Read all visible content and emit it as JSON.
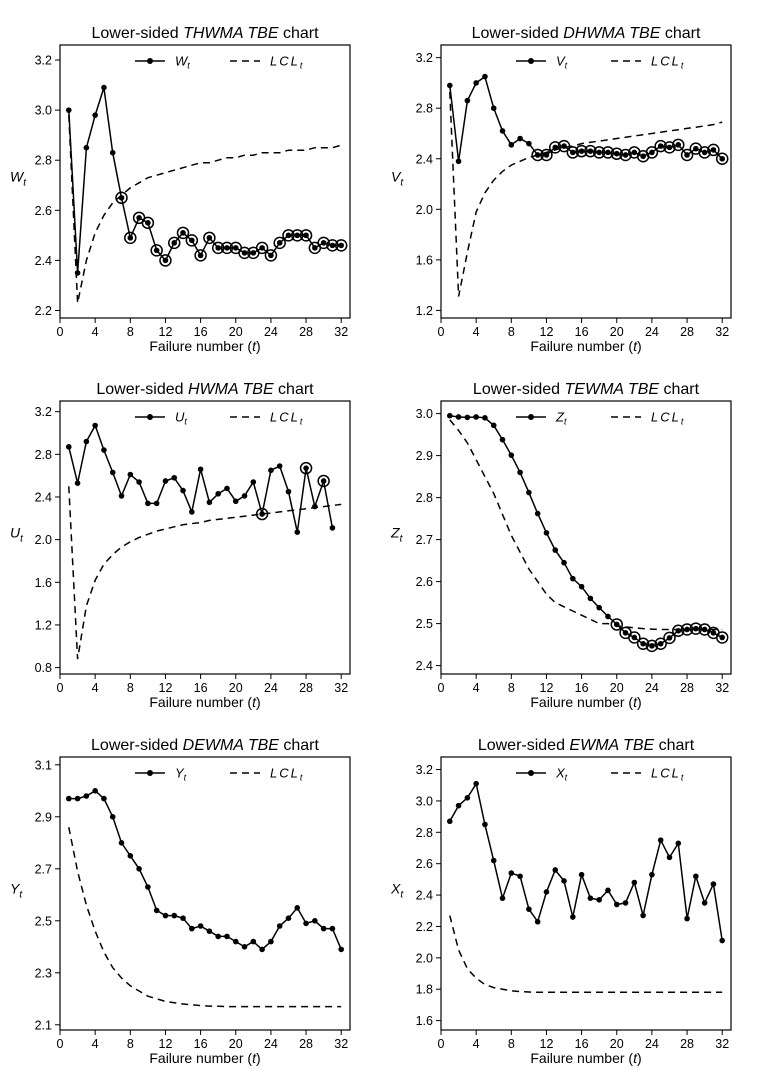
{
  "chart_data": [
    {
      "type": "line",
      "title_parts": [
        "Lower-sided ",
        "THWMA TBE",
        " chart"
      ],
      "xlabel_parts": [
        "Failure number (",
        "t",
        ")"
      ],
      "ylabel": {
        "main": "W",
        "sub": "t"
      },
      "legend": [
        {
          "main": "W",
          "sub": "t",
          "style": "solid-dots"
        },
        {
          "main": "LCL",
          "sub": "t",
          "style": "dashed"
        }
      ],
      "xlim": [
        0,
        33
      ],
      "ylim": [
        2.17,
        3.26
      ],
      "xticks": [
        0,
        4,
        8,
        12,
        16,
        20,
        24,
        28,
        32
      ],
      "yticks": [
        2.2,
        2.4,
        2.6,
        2.8,
        3.0,
        3.2
      ],
      "ytick_labels": [
        "2.2",
        "2.4",
        "2.6",
        "2.8",
        "3.0",
        "3.2"
      ],
      "x": [
        1,
        2,
        3,
        4,
        5,
        6,
        7,
        8,
        9,
        10,
        11,
        12,
        13,
        14,
        15,
        16,
        17,
        18,
        19,
        20,
        21,
        22,
        23,
        24,
        25,
        26,
        27,
        28,
        29,
        30,
        31,
        32
      ],
      "series": {
        "name": "W_t",
        "values": [
          3.0,
          2.35,
          2.85,
          2.98,
          3.09,
          2.83,
          2.65,
          2.49,
          2.57,
          2.55,
          2.44,
          2.4,
          2.47,
          2.51,
          2.48,
          2.42,
          2.49,
          2.45,
          2.45,
          2.45,
          2.43,
          2.43,
          2.45,
          2.42,
          2.47,
          2.5,
          2.5,
          2.5,
          2.45,
          2.47,
          2.46,
          2.46
        ]
      },
      "lcl": {
        "name": "LCL_t",
        "values": [
          2.98,
          2.23,
          2.4,
          2.51,
          2.58,
          2.63,
          2.66,
          2.69,
          2.71,
          2.73,
          2.74,
          2.75,
          2.76,
          2.77,
          2.78,
          2.79,
          2.79,
          2.8,
          2.81,
          2.81,
          2.82,
          2.82,
          2.83,
          2.83,
          2.83,
          2.84,
          2.84,
          2.84,
          2.85,
          2.85,
          2.85,
          2.86
        ]
      },
      "signals": [
        7,
        8,
        9,
        10,
        11,
        12,
        13,
        14,
        15,
        16,
        17,
        18,
        19,
        20,
        21,
        22,
        23,
        24,
        25,
        26,
        27,
        28,
        29,
        30,
        31,
        32
      ]
    },
    {
      "type": "line",
      "title_parts": [
        "Lower-sided ",
        "DHWMA TBE",
        " chart"
      ],
      "xlabel_parts": [
        "Failure number (",
        "t",
        ")"
      ],
      "ylabel": {
        "main": "V",
        "sub": "t"
      },
      "legend": [
        {
          "main": "V",
          "sub": "t",
          "style": "solid-dots"
        },
        {
          "main": "LCL",
          "sub": "t",
          "style": "dashed"
        }
      ],
      "xlim": [
        0,
        33
      ],
      "ylim": [
        1.14,
        3.3
      ],
      "xticks": [
        0,
        4,
        8,
        12,
        16,
        20,
        24,
        28,
        32
      ],
      "yticks": [
        1.2,
        1.6,
        2.0,
        2.4,
        2.8,
        3.2
      ],
      "ytick_labels": [
        "1.2",
        "1.6",
        "2.0",
        "2.4",
        "2.8",
        "3.2"
      ],
      "x": [
        1,
        2,
        3,
        4,
        5,
        6,
        7,
        8,
        9,
        10,
        11,
        12,
        13,
        14,
        15,
        16,
        17,
        18,
        19,
        20,
        21,
        22,
        23,
        24,
        25,
        26,
        27,
        28,
        29,
        30,
        31,
        32
      ],
      "series": {
        "name": "V_t",
        "values": [
          2.98,
          2.38,
          2.86,
          3.0,
          3.05,
          2.8,
          2.62,
          2.51,
          2.56,
          2.52,
          2.43,
          2.43,
          2.49,
          2.5,
          2.45,
          2.46,
          2.46,
          2.45,
          2.45,
          2.44,
          2.43,
          2.45,
          2.42,
          2.45,
          2.5,
          2.49,
          2.51,
          2.43,
          2.48,
          2.45,
          2.47,
          2.4
        ]
      },
      "lcl": {
        "name": "LCL_t",
        "values": [
          2.93,
          1.31,
          1.66,
          1.98,
          2.13,
          2.23,
          2.3,
          2.35,
          2.38,
          2.41,
          2.43,
          2.45,
          2.47,
          2.49,
          2.5,
          2.52,
          2.53,
          2.54,
          2.55,
          2.56,
          2.57,
          2.58,
          2.59,
          2.6,
          2.61,
          2.62,
          2.63,
          2.64,
          2.65,
          2.66,
          2.67,
          2.69
        ]
      },
      "signals": [
        11,
        12,
        13,
        14,
        15,
        16,
        17,
        18,
        19,
        20,
        21,
        22,
        23,
        24,
        25,
        26,
        27,
        28,
        29,
        30,
        31,
        32
      ]
    },
    {
      "type": "line",
      "title_parts": [
        "Lower-sided ",
        "HWMA TBE",
        " chart"
      ],
      "xlabel_parts": [
        "Failure number (",
        "t",
        ")"
      ],
      "ylabel": {
        "main": "U",
        "sub": "t"
      },
      "legend": [
        {
          "main": "U",
          "sub": "t",
          "style": "solid-dots"
        },
        {
          "main": "LCL",
          "sub": "t",
          "style": "dashed"
        }
      ],
      "xlim": [
        0,
        33
      ],
      "ylim": [
        0.74,
        3.3
      ],
      "xticks": [
        0,
        4,
        8,
        12,
        16,
        20,
        24,
        28,
        32
      ],
      "yticks": [
        0.8,
        1.2,
        1.6,
        2.0,
        2.4,
        2.8,
        3.2
      ],
      "ytick_labels": [
        "0.8",
        "1.2",
        "1.6",
        "2.0",
        "2.4",
        "2.8",
        "3.2"
      ],
      "x": [
        1,
        2,
        3,
        4,
        5,
        6,
        7,
        8,
        9,
        10,
        11,
        12,
        13,
        14,
        15,
        16,
        17,
        18,
        19,
        20,
        21,
        22,
        23,
        24,
        25,
        26,
        27,
        28,
        29,
        30,
        31,
        32
      ],
      "series": {
        "name": "U_t",
        "values": [
          2.87,
          2.53,
          2.92,
          3.07,
          2.84,
          2.63,
          2.41,
          2.61,
          2.54,
          2.34,
          2.34,
          2.55,
          2.58,
          2.46,
          2.26,
          2.66,
          2.35,
          2.43,
          2.48,
          2.36,
          2.41,
          2.54,
          2.24,
          2.65,
          2.69,
          2.45,
          2.07,
          2.67,
          2.31,
          2.55,
          2.11,
          null
        ]
      },
      "lcl": {
        "name": "LCL_t",
        "values": [
          2.5,
          0.88,
          1.38,
          1.62,
          1.77,
          1.86,
          1.93,
          1.98,
          2.02,
          2.05,
          2.08,
          2.1,
          2.12,
          2.14,
          2.15,
          2.16,
          2.18,
          2.19,
          2.2,
          2.21,
          2.22,
          2.23,
          2.24,
          2.25,
          2.26,
          2.27,
          2.28,
          2.29,
          2.3,
          2.31,
          2.32,
          2.33
        ]
      },
      "signals": [
        23,
        28,
        30,
        32
      ]
    },
    {
      "type": "line",
      "title_parts": [
        "Lower-sided ",
        "TEWMA TBE",
        " chart"
      ],
      "xlabel_parts": [
        "Failure number (",
        "t",
        ")"
      ],
      "ylabel": {
        "main": "Z",
        "sub": "t"
      },
      "legend": [
        {
          "main": "Z",
          "sub": "t",
          "style": "solid-dots"
        },
        {
          "main": "LCL",
          "sub": "t",
          "style": "dashed"
        }
      ],
      "xlim": [
        0,
        33
      ],
      "ylim": [
        2.38,
        3.03
      ],
      "xticks": [
        0,
        4,
        8,
        12,
        16,
        20,
        24,
        28,
        32
      ],
      "yticks": [
        2.4,
        2.5,
        2.6,
        2.7,
        2.8,
        2.9,
        3.0
      ],
      "ytick_labels": [
        "2.4",
        "2.5",
        "2.6",
        "2.7",
        "2.8",
        "2.9",
        "3.0"
      ],
      "x": [
        1,
        2,
        3,
        4,
        5,
        6,
        7,
        8,
        9,
        10,
        11,
        12,
        13,
        14,
        15,
        16,
        17,
        18,
        19,
        20,
        21,
        22,
        23,
        24,
        25,
        26,
        27,
        28,
        29,
        30,
        31,
        32
      ],
      "series": {
        "name": "Z_t",
        "values": [
          2.995,
          2.992,
          2.991,
          2.992,
          2.99,
          2.972,
          2.938,
          2.901,
          2.86,
          2.812,
          2.762,
          2.716,
          2.675,
          2.645,
          2.607,
          2.588,
          2.56,
          2.538,
          2.517,
          2.498,
          2.478,
          2.467,
          2.452,
          2.447,
          2.452,
          2.466,
          2.483,
          2.486,
          2.488,
          2.486,
          2.478,
          2.467
        ]
      },
      "lcl": {
        "name": "LCL_t",
        "values": [
          2.985,
          2.96,
          2.93,
          2.89,
          2.85,
          2.81,
          2.76,
          2.71,
          2.67,
          2.63,
          2.6,
          2.57,
          2.55,
          2.54,
          2.53,
          2.52,
          2.51,
          2.5,
          2.5,
          2.495,
          2.492,
          2.49,
          2.488,
          2.487,
          2.486,
          2.486,
          2.486,
          2.486,
          2.486,
          2.486,
          2.486,
          2.486
        ]
      },
      "signals": [
        20,
        21,
        22,
        23,
        24,
        25,
        26,
        27,
        28,
        29,
        30,
        31,
        32
      ]
    },
    {
      "type": "line",
      "title_parts": [
        "Lower-sided ",
        "DEWMA TBE",
        " chart"
      ],
      "xlabel_parts": [
        "Failure number (",
        "t",
        ")"
      ],
      "ylabel": {
        "main": "Y",
        "sub": "t"
      },
      "legend": [
        {
          "main": "Y",
          "sub": "t",
          "style": "solid-dots"
        },
        {
          "main": "LCL",
          "sub": "t",
          "style": "dashed"
        }
      ],
      "xlim": [
        0,
        33
      ],
      "ylim": [
        2.08,
        3.13
      ],
      "xticks": [
        0,
        4,
        8,
        12,
        16,
        20,
        24,
        28,
        32
      ],
      "yticks": [
        2.1,
        2.3,
        2.5,
        2.7,
        2.9,
        3.1
      ],
      "ytick_labels": [
        "2.1",
        "2.3",
        "2.5",
        "2.7",
        "2.9",
        "3.1"
      ],
      "x": [
        1,
        2,
        3,
        4,
        5,
        6,
        7,
        8,
        9,
        10,
        11,
        12,
        13,
        14,
        15,
        16,
        17,
        18,
        19,
        20,
        21,
        22,
        23,
        24,
        25,
        26,
        27,
        28,
        29,
        30,
        31,
        32
      ],
      "series": {
        "name": "Y_t",
        "values": [
          2.97,
          2.97,
          2.98,
          3.0,
          2.97,
          2.9,
          2.8,
          2.75,
          2.7,
          2.63,
          2.54,
          2.52,
          2.52,
          2.51,
          2.47,
          2.48,
          2.46,
          2.44,
          2.44,
          2.42,
          2.4,
          2.42,
          2.39,
          2.42,
          2.48,
          2.51,
          2.55,
          2.49,
          2.5,
          2.47,
          2.47,
          2.39
        ]
      },
      "lcl": {
        "name": "LCL_t",
        "values": [
          2.86,
          2.69,
          2.56,
          2.46,
          2.38,
          2.32,
          2.28,
          2.25,
          2.23,
          2.21,
          2.2,
          2.19,
          2.185,
          2.18,
          2.177,
          2.174,
          2.172,
          2.171,
          2.17,
          2.17,
          2.17,
          2.17,
          2.17,
          2.17,
          2.17,
          2.17,
          2.17,
          2.17,
          2.17,
          2.17,
          2.17,
          2.17
        ]
      },
      "signals": []
    },
    {
      "type": "line",
      "title_parts": [
        "Lower-sided ",
        "EWMA TBE",
        " chart"
      ],
      "xlabel_parts": [
        "Failure number (",
        "t",
        ")"
      ],
      "ylabel": {
        "main": "X",
        "sub": "t"
      },
      "legend": [
        {
          "main": "X",
          "sub": "t",
          "style": "solid-dots"
        },
        {
          "main": "LCL",
          "sub": "t",
          "style": "dashed"
        }
      ],
      "xlim": [
        0,
        33
      ],
      "ylim": [
        1.54,
        3.28
      ],
      "xticks": [
        0,
        4,
        8,
        12,
        16,
        20,
        24,
        28,
        32
      ],
      "yticks": [
        1.6,
        1.8,
        2.0,
        2.2,
        2.4,
        2.6,
        2.8,
        3.0,
        3.2
      ],
      "ytick_labels": [
        "1.6",
        "1.8",
        "2.0",
        "2.2",
        "2.4",
        "2.6",
        "2.8",
        "3.0",
        "3.2"
      ],
      "x": [
        1,
        2,
        3,
        4,
        5,
        6,
        7,
        8,
        9,
        10,
        11,
        12,
        13,
        14,
        15,
        16,
        17,
        18,
        19,
        20,
        21,
        22,
        23,
        24,
        25,
        26,
        27,
        28,
        29,
        30,
        31,
        32
      ],
      "series": {
        "name": "X_t",
        "values": [
          2.87,
          2.97,
          3.02,
          3.11,
          2.85,
          2.62,
          2.38,
          2.54,
          2.52,
          2.31,
          2.23,
          2.42,
          2.56,
          2.49,
          2.26,
          2.53,
          2.38,
          2.37,
          2.43,
          2.34,
          2.35,
          2.48,
          2.27,
          2.53,
          2.75,
          2.64,
          2.73,
          2.25,
          2.52,
          2.35,
          2.47,
          2.11
        ]
      },
      "lcl": {
        "name": "LCL_t",
        "values": [
          2.27,
          2.05,
          1.93,
          1.87,
          1.83,
          1.81,
          1.8,
          1.79,
          1.785,
          1.782,
          1.78,
          1.78,
          1.78,
          1.78,
          1.78,
          1.78,
          1.78,
          1.78,
          1.78,
          1.78,
          1.78,
          1.78,
          1.78,
          1.78,
          1.78,
          1.78,
          1.78,
          1.78,
          1.78,
          1.78,
          1.78,
          1.78
        ]
      },
      "signals": []
    }
  ]
}
